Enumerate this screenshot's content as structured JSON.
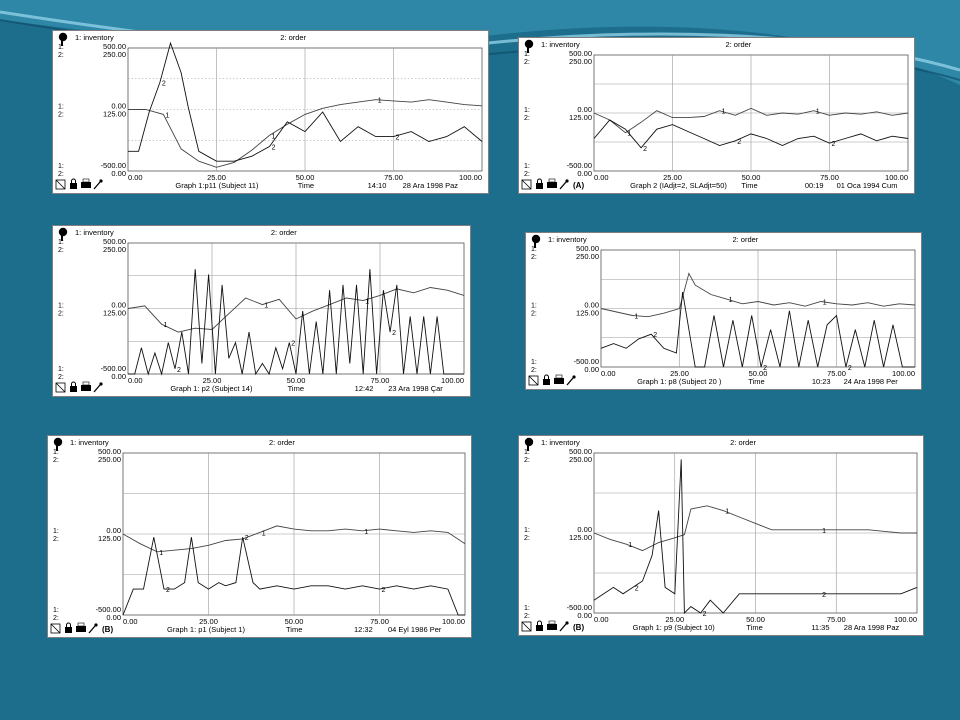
{
  "theme": {
    "bg": "#1d6e8c",
    "stripe_light": "#58a9c8",
    "stripe_dark": "#0d4f6b"
  },
  "chart_data": [
    {
      "id": "p11",
      "type": "line",
      "legend": [
        "1: inventory",
        "2: order"
      ],
      "series": [
        {
          "name": "1: inventory",
          "x": [
            0,
            5,
            10,
            15,
            20,
            25,
            30,
            35,
            40,
            45,
            50,
            55,
            60,
            65,
            70,
            75,
            80,
            85,
            90,
            95,
            100
          ],
          "values": [
            0,
            0,
            -40,
            -320,
            -420,
            -470,
            -430,
            -330,
            -210,
            -120,
            -40,
            10,
            40,
            60,
            80,
            70,
            60,
            80,
            60,
            40,
            30
          ]
        },
        {
          "name": "2: order",
          "x": [
            0,
            3,
            6,
            9,
            12,
            15,
            17,
            20,
            25,
            30,
            35,
            40,
            45,
            50,
            55,
            60,
            65,
            70,
            75,
            80,
            85,
            90,
            95,
            100
          ],
          "values": [
            40,
            40,
            120,
            180,
            260,
            200,
            130,
            40,
            20,
            20,
            30,
            50,
            100,
            80,
            120,
            60,
            90,
            70,
            70,
            80,
            60,
            70,
            90,
            60
          ]
        }
      ],
      "y1_ticks": [
        "500.00",
        "0.00",
        "-500.00"
      ],
      "y2_ticks": [
        "250.00",
        "125.00",
        "0.00"
      ],
      "x_ticks": [
        "0.00",
        "25.00",
        "50.00",
        "75.00",
        "100.00"
      ],
      "footer": "Graph 1:p11 (Subject 11)",
      "time_label": "Time",
      "time": "14:10",
      "date": "28 Ara 1998 Paz",
      "tag": ""
    },
    {
      "id": "graph2",
      "type": "line",
      "legend": [
        "1: inventory",
        "2: order"
      ],
      "series": [
        {
          "name": "1: inventory",
          "x": [
            0,
            5,
            10,
            15,
            20,
            25,
            30,
            35,
            40,
            45,
            50,
            55,
            60,
            65,
            70,
            75,
            80,
            85,
            90,
            95,
            100
          ],
          "values": [
            0,
            -60,
            -170,
            -80,
            20,
            -40,
            -40,
            -30,
            20,
            -20,
            40,
            -20,
            0,
            -10,
            20,
            -20,
            0,
            -10,
            10,
            -20,
            0
          ]
        },
        {
          "name": "2: order",
          "x": [
            0,
            5,
            10,
            15,
            20,
            25,
            30,
            35,
            40,
            45,
            50,
            55,
            60,
            65,
            70,
            75,
            80,
            85,
            90,
            95,
            100
          ],
          "values": [
            70,
            110,
            90,
            50,
            90,
            100,
            85,
            70,
            55,
            65,
            80,
            70,
            55,
            70,
            75,
            60,
            70,
            80,
            65,
            75,
            70
          ]
        }
      ],
      "y1_ticks": [
        "500.00",
        "0.00",
        "-500.00"
      ],
      "y2_ticks": [
        "250.00",
        "125.00",
        "0.00"
      ],
      "x_ticks": [
        "0.00",
        "25.00",
        "50.00",
        "75.00",
        "100.00"
      ],
      "footer": "Graph 2 (IAdjt=2, SLAdjt=50)",
      "time_label": "Time",
      "time": "00:19",
      "date": "01 Oca 1994 Cum",
      "tag": "(A)"
    },
    {
      "id": "p2",
      "type": "line",
      "legend": [
        "1: inventory",
        "2: order"
      ],
      "series": [
        {
          "name": "1: inventory",
          "x": [
            0,
            5,
            10,
            15,
            20,
            25,
            30,
            35,
            40,
            45,
            50,
            55,
            60,
            65,
            70,
            75,
            80,
            85,
            90,
            95,
            100
          ],
          "values": [
            0,
            20,
            -120,
            -180,
            -150,
            -160,
            -40,
            80,
            30,
            70,
            -80,
            -20,
            30,
            80,
            60,
            100,
            150,
            120,
            160,
            140,
            100
          ]
        },
        {
          "name": "2: order",
          "x": [
            0,
            2,
            4,
            6,
            8,
            10,
            12,
            14,
            16,
            18,
            20,
            22,
            24,
            26,
            28,
            30,
            32,
            34,
            36,
            38,
            40,
            42,
            44,
            46,
            48,
            50,
            52,
            54,
            56,
            58,
            60,
            62,
            64,
            66,
            68,
            70,
            72,
            74,
            76,
            78,
            80,
            82,
            84,
            86,
            88,
            90,
            92,
            94,
            96,
            98,
            100
          ],
          "values": [
            0,
            0,
            50,
            0,
            40,
            0,
            60,
            10,
            80,
            0,
            200,
            20,
            190,
            0,
            170,
            30,
            60,
            0,
            80,
            0,
            20,
            0,
            50,
            10,
            60,
            0,
            120,
            0,
            100,
            0,
            160,
            0,
            170,
            20,
            170,
            0,
            200,
            0,
            160,
            80,
            170,
            0,
            110,
            0,
            110,
            0,
            110,
            0,
            0,
            0,
            0
          ]
        }
      ],
      "y1_ticks": [
        "500.00",
        "0.00",
        "-500.00"
      ],
      "y2_ticks": [
        "250.00",
        "125.00",
        "0.00"
      ],
      "x_ticks": [
        "0.00",
        "25.00",
        "50.00",
        "75.00",
        "100.00"
      ],
      "footer": "Graph 1: p2 (Subject 14)",
      "time_label": "Time",
      "time": "12:42",
      "date": "23 Ara 1998 Çar",
      "tag": ""
    },
    {
      "id": "p8",
      "type": "line",
      "legend": [
        "1: inventory",
        "2: order"
      ],
      "series": [
        {
          "name": "1: inventory",
          "x": [
            0,
            5,
            10,
            15,
            20,
            25,
            28,
            30,
            35,
            40,
            45,
            50,
            55,
            60,
            65,
            70,
            75,
            80,
            85,
            90,
            95,
            100
          ],
          "values": [
            0,
            -30,
            -60,
            -70,
            -40,
            0,
            300,
            200,
            120,
            80,
            40,
            60,
            30,
            50,
            20,
            60,
            40,
            30,
            50,
            20,
            40,
            30
          ]
        },
        {
          "name": "2: order",
          "x": [
            0,
            4,
            8,
            12,
            16,
            20,
            24,
            26,
            30,
            33,
            36,
            39,
            42,
            45,
            48,
            51,
            54,
            57,
            60,
            63,
            66,
            69,
            72,
            75,
            78,
            81,
            84,
            87,
            90,
            93,
            96,
            100
          ],
          "values": [
            40,
            50,
            40,
            60,
            70,
            40,
            30,
            160,
            0,
            0,
            110,
            0,
            100,
            0,
            110,
            0,
            80,
            0,
            120,
            0,
            100,
            0,
            90,
            110,
            0,
            80,
            0,
            100,
            0,
            90,
            0,
            0
          ]
        }
      ],
      "y1_ticks": [
        "500.00",
        "0.00",
        "-500.00"
      ],
      "y2_ticks": [
        "250.00",
        "125.00",
        "0.00"
      ],
      "x_ticks": [
        "0.00",
        "25.00",
        "50.00",
        "75.00",
        "100.00"
      ],
      "footer": "Graph 1: p8 (Subject 20 )",
      "time_label": "Time",
      "time": "10:23",
      "date": "24 Ara 1998 Per",
      "tag": ""
    },
    {
      "id": "p1",
      "type": "line",
      "legend": [
        "1: inventory",
        "2: order"
      ],
      "series": [
        {
          "name": "1: inventory",
          "x": [
            0,
            5,
            10,
            15,
            20,
            25,
            30,
            35,
            40,
            45,
            50,
            55,
            60,
            65,
            70,
            75,
            80,
            85,
            90,
            95,
            100
          ],
          "values": [
            0,
            -60,
            -110,
            -100,
            -90,
            -70,
            -40,
            -30,
            10,
            50,
            30,
            20,
            20,
            30,
            20,
            30,
            20,
            10,
            20,
            10,
            -60
          ]
        },
        {
          "name": "2: order",
          "x": [
            0,
            3,
            6,
            9,
            12,
            15,
            18,
            20,
            22,
            25,
            28,
            30,
            33,
            35,
            38,
            40,
            45,
            50,
            55,
            60,
            65,
            70,
            75,
            80,
            85,
            90,
            95,
            98,
            100
          ],
          "values": [
            0,
            40,
            40,
            120,
            40,
            40,
            50,
            120,
            50,
            40,
            50,
            45,
            50,
            120,
            50,
            40,
            45,
            40,
            45,
            45,
            40,
            45,
            40,
            45,
            40,
            45,
            40,
            0,
            0
          ]
        }
      ],
      "y1_ticks": [
        "500.00",
        "0.00",
        "-500.00"
      ],
      "y2_ticks": [
        "250.00",
        "125.00",
        "0.00"
      ],
      "x_ticks": [
        "0.00",
        "25.00",
        "50.00",
        "75.00",
        "100.00"
      ],
      "footer": "Graph 1: p1 (Subject 1)",
      "time_label": "Time",
      "time": "12:32",
      "date": "04 Eyl 1986 Per",
      "tag": "(B)"
    },
    {
      "id": "p9",
      "type": "line",
      "legend": [
        "1: inventory",
        "2: order"
      ],
      "series": [
        {
          "name": "1: inventory",
          "x": [
            0,
            5,
            10,
            15,
            20,
            25,
            28,
            30,
            35,
            40,
            45,
            50,
            55,
            60,
            65,
            70,
            75,
            80,
            85,
            90,
            95,
            100
          ],
          "values": [
            0,
            -40,
            -70,
            -110,
            -60,
            -30,
            -10,
            150,
            170,
            140,
            100,
            60,
            20,
            20,
            20,
            20,
            20,
            20,
            20,
            10,
            0,
            0
          ]
        },
        {
          "name": "2: order",
          "x": [
            0,
            3,
            6,
            9,
            12,
            15,
            18,
            20,
            22,
            25,
            27,
            28,
            30,
            33,
            36,
            40,
            45,
            50,
            55,
            60,
            65,
            70,
            75,
            80,
            85,
            90,
            95,
            100
          ],
          "values": [
            20,
            30,
            40,
            30,
            40,
            50,
            90,
            160,
            40,
            30,
            240,
            0,
            10,
            0,
            20,
            0,
            30,
            30,
            30,
            30,
            30,
            30,
            30,
            30,
            30,
            30,
            30,
            40
          ]
        }
      ],
      "y1_ticks": [
        "500.00",
        "0.00",
        "-500.00"
      ],
      "y2_ticks": [
        "250.00",
        "125.00",
        "0.00"
      ],
      "x_ticks": [
        "0.00",
        "25.00",
        "50.00",
        "75.00",
        "100.00"
      ],
      "footer": "Graph 1: p9 (Subject 10)",
      "time_label": "Time",
      "time": "11:35",
      "date": "28 Ara 1998 Paz",
      "tag": "(B)"
    }
  ]
}
